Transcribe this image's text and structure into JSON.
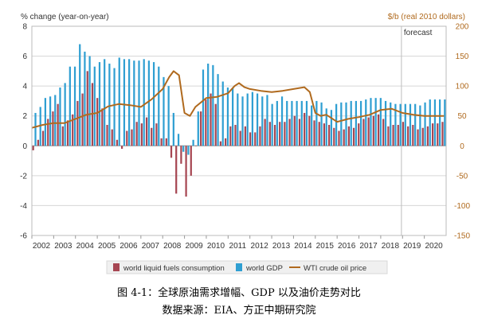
{
  "chart_data": {
    "type": "bar",
    "left_axis_title": "% change (year-on-year)",
    "right_axis_title": "$/b (real 2010 dollars)",
    "left_ylim": [
      -6,
      8
    ],
    "left_ticks": [
      "8",
      "6",
      "4",
      "2",
      "0",
      "-2",
      "-4",
      "-6"
    ],
    "right_ylim": [
      -150,
      200
    ],
    "right_ticks": [
      "200",
      "150",
      "100",
      "50",
      "0",
      "-50",
      "-100",
      "-150"
    ],
    "x_ticks": [
      "2002",
      "2003",
      "2004",
      "2005",
      "2006",
      "2007",
      "2008",
      "2009",
      "2010",
      "2011",
      "2012",
      "2013",
      "2014",
      "2015",
      "2016",
      "2017",
      "2018",
      "2019",
      "2020"
    ],
    "x_start": 2002,
    "x_end": 2021,
    "forecast_label": "forecast",
    "forecast_start": 2018.95,
    "grid": true,
    "legend_position": "bottom",
    "series": [
      {
        "name": "world liquid fuels consumption",
        "type": "bar",
        "axis": "left",
        "color": "#a64652",
        "values": [
          -0.3,
          0.4,
          1.0,
          1.8,
          2.3,
          2.8,
          1.3,
          1.7,
          2.1,
          3.0,
          3.5,
          5.0,
          4.2,
          3.2,
          2.5,
          1.4,
          1.1,
          0.4,
          -0.2,
          1.0,
          1.1,
          1.6,
          1.5,
          1.9,
          1.2,
          1.5,
          0.5,
          0.5,
          -0.8,
          -3.2,
          -1.2,
          -3.4,
          -2.0,
          0.0,
          2.3,
          3.1,
          3.5,
          2.8,
          0.3,
          0.5,
          1.3,
          1.4,
          1.0,
          1.3,
          0.9,
          0.9,
          1.3,
          1.8,
          1.6,
          1.4,
          1.6,
          1.6,
          1.8,
          2.0,
          1.8,
          2.2,
          2.0,
          1.7,
          1.6,
          1.5,
          1.4,
          1.2,
          1.0,
          1.1,
          1.3,
          1.2,
          1.5,
          1.8,
          1.9,
          2.0,
          2.1,
          1.8,
          1.3,
          1.4,
          1.4,
          1.6,
          1.3,
          1.4,
          1.1,
          1.2,
          1.3,
          1.5,
          1.5,
          1.6
        ]
      },
      {
        "name": "world GDP",
        "type": "bar",
        "axis": "left",
        "color": "#2f9fd2",
        "values": [
          2.2,
          2.6,
          3.2,
          3.3,
          3.4,
          3.9,
          4.2,
          5.3,
          5.3,
          6.8,
          6.3,
          6.0,
          5.3,
          5.6,
          5.8,
          5.5,
          5.2,
          5.9,
          5.8,
          5.8,
          5.7,
          5.7,
          5.8,
          5.7,
          5.6,
          5.3,
          4.6,
          4.0,
          2.2,
          0.8,
          -0.4,
          -0.6,
          0.4,
          2.3,
          5.1,
          5.5,
          5.4,
          4.8,
          4.3,
          3.9,
          3.9,
          3.5,
          3.3,
          3.5,
          3.6,
          3.5,
          3.3,
          3.4,
          2.8,
          3.0,
          3.3,
          3.0,
          3.0,
          3.0,
          3.0,
          3.0,
          2.7,
          3.0,
          2.9,
          2.5,
          2.4,
          2.8,
          2.9,
          2.9,
          3.0,
          3.0,
          3.0,
          3.1,
          3.2,
          3.2,
          3.2,
          3.0,
          2.9,
          2.8,
          2.8,
          2.8,
          2.8,
          2.8,
          2.7,
          2.9,
          3.1,
          3.1,
          3.1,
          3.1
        ]
      },
      {
        "name": "WTI crude oil price",
        "type": "line",
        "axis": "right",
        "color": "#b06a1e",
        "x": [
          2002.0,
          2002.5,
          2003.0,
          2003.5,
          2004.0,
          2004.5,
          2005.0,
          2005.5,
          2006.0,
          2006.5,
          2007.0,
          2007.5,
          2008.0,
          2008.3,
          2008.5,
          2008.75,
          2009.0,
          2009.25,
          2009.5,
          2010.0,
          2010.5,
          2011.0,
          2011.3,
          2011.5,
          2011.75,
          2012.0,
          2012.5,
          2013.0,
          2013.5,
          2014.0,
          2014.5,
          2014.75,
          2015.0,
          2015.25,
          2015.5,
          2016.0,
          2016.5,
          2017.0,
          2017.5,
          2018.0,
          2018.5,
          2019.0,
          2019.5,
          2020.0,
          2020.5,
          2020.9
        ],
        "values": [
          30,
          35,
          38,
          38,
          45,
          52,
          55,
          66,
          70,
          68,
          65,
          78,
          95,
          115,
          125,
          118,
          55,
          50,
          65,
          80,
          82,
          88,
          100,
          105,
          98,
          95,
          92,
          90,
          92,
          95,
          98,
          90,
          55,
          50,
          52,
          40,
          45,
          48,
          52,
          60,
          62,
          55,
          52,
          50,
          50,
          50
        ]
      }
    ]
  },
  "caption": {
    "line1": "图 4-1：全球原油需求增幅、GDP 以及油价走势对比",
    "line2": "数据来源：EIA、方正中期研究院"
  }
}
